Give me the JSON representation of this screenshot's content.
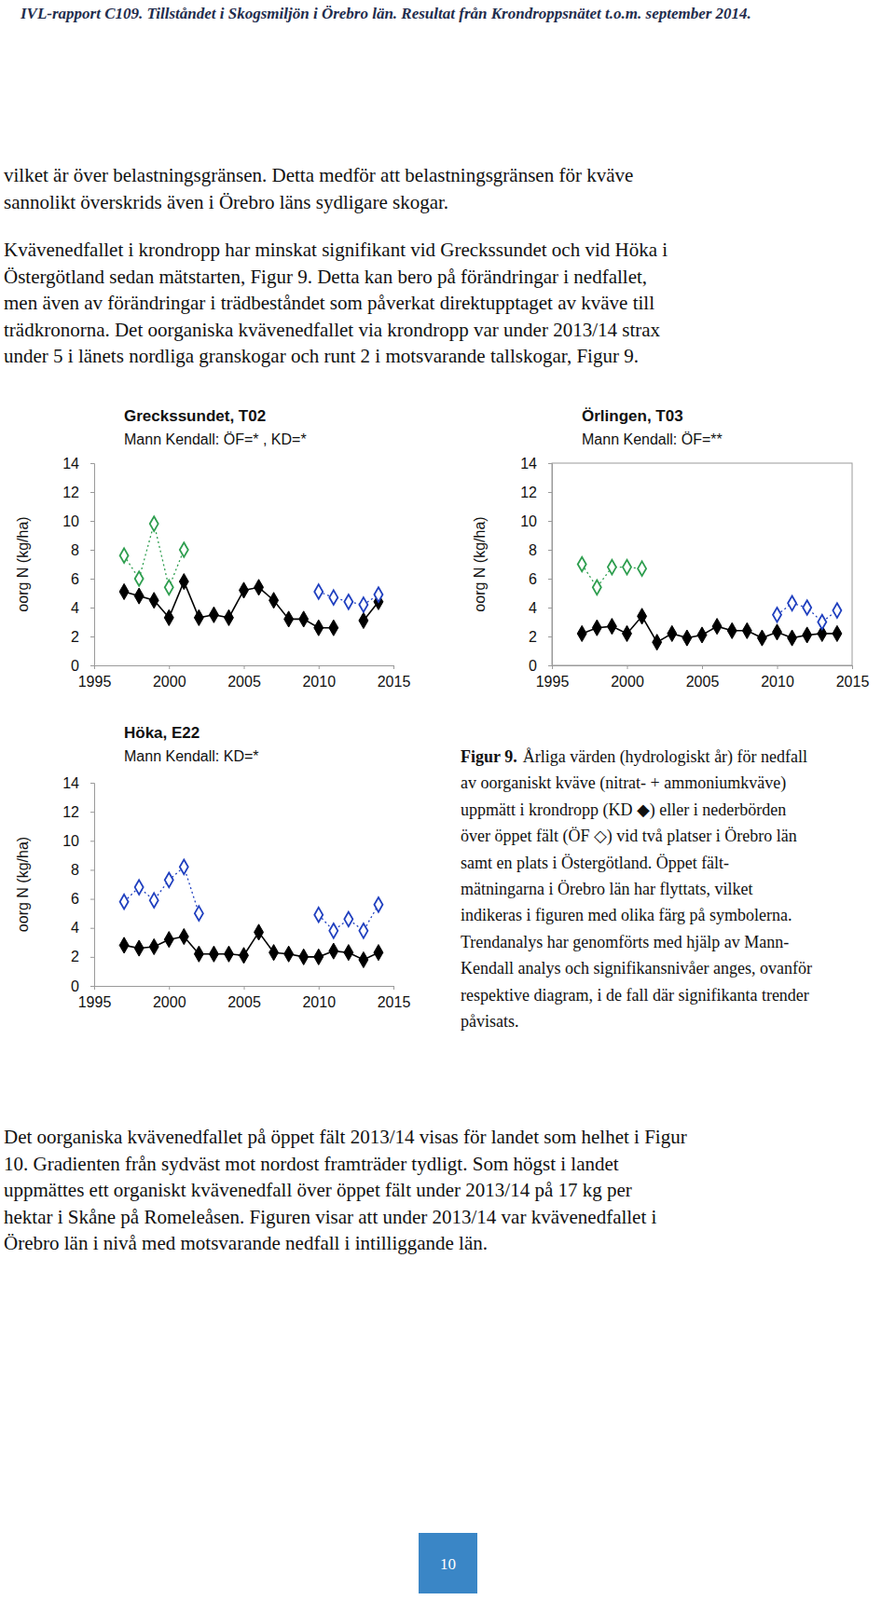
{
  "header": "IVL-rapport C109. Tillståndet i Skogsmiljön i Örebro län. Resultat från Krondroppsnätet t.o.m. september 2014.",
  "paragraphs_top": [
    [
      "vilket är över belastningsgränsen. Detta medför att belastningsgränsen för kväve",
      "sannolikt överskrids även i Örebro läns sydligare skogar."
    ],
    [
      "Kvävenedfallet i krondropp har minskat signifikant vid Greckssundet och vid Höka i",
      "Östergötland sedan mätstarten, Figur 9. Detta kan bero på förändringar i nedfallet,",
      "men även av förändringar i trädbeståndet som påverkat direktupptaget av kväve till",
      "trädkronorna. Det oorganiska kvävenedfallet via krondropp var under 2013/14 strax",
      "under 5 i länets nordliga granskogar och runt 2 i motsvarande tallskogar, Figur 9."
    ]
  ],
  "chart_data": [
    {
      "type": "line",
      "title": "Greckssundet, T02",
      "subtitle": "Mann Kendall: ÖF=* , KD=*",
      "y_label": "oorg N (kg/ha)",
      "x": [
        1997,
        1998,
        1999,
        2000,
        2001,
        2002,
        2003,
        2004,
        2005,
        2006,
        2007,
        2008,
        2009,
        2010,
        2011,
        2012,
        2013,
        2014
      ],
      "xlim": [
        1995,
        2015
      ],
      "xticks": [
        1995,
        2000,
        2005,
        2010,
        2015
      ],
      "ylim": [
        0,
        14
      ],
      "yticks": [
        0,
        2,
        4,
        6,
        8,
        10,
        12,
        14
      ],
      "series": [
        {
          "color": "#000000",
          "marker": "diamond",
          "line_style": "solid",
          "values": [
            5.1,
            4.8,
            4.5,
            3.3,
            5.8,
            3.3,
            3.5,
            3.3,
            5.2,
            5.4,
            4.5,
            3.2,
            3.2,
            2.6,
            2.6,
            null,
            3.1,
            4.4
          ]
        },
        {
          "colors": [
            "#2e9e4f",
            "#2e9e4f",
            "#2e9e4f",
            "#2e9e4f",
            "#2e9e4f",
            null,
            null,
            null,
            null,
            null,
            null,
            null,
            null,
            "#1f3fbf",
            "#1f3fbf",
            "#1f3fbf",
            "#1f3fbf",
            "#1f3fbf"
          ],
          "marker": "diamond-open",
          "line_style": "dotted",
          "values": [
            7.6,
            6.0,
            9.8,
            5.4,
            8.0,
            null,
            null,
            null,
            null,
            null,
            null,
            null,
            null,
            5.1,
            4.7,
            4.4,
            4.2,
            4.9
          ]
        }
      ]
    },
    {
      "type": "line",
      "title": "Örlingen, T03",
      "subtitle": "Mann Kendall: ÖF=**",
      "y_label": "oorg N (kg/ha)",
      "x": [
        1997,
        1998,
        1999,
        2000,
        2001,
        2002,
        2003,
        2004,
        2005,
        2006,
        2007,
        2008,
        2009,
        2010,
        2011,
        2012,
        2013,
        2014
      ],
      "xlim": [
        1995,
        2015
      ],
      "xticks": [
        1995,
        2000,
        2005,
        2010,
        2015
      ],
      "ylim": [
        0,
        14
      ],
      "yticks": [
        0,
        2,
        4,
        6,
        8,
        10,
        12,
        14
      ],
      "series": [
        {
          "color": "#000000",
          "marker": "diamond",
          "line_style": "solid",
          "values": [
            2.2,
            2.6,
            2.7,
            2.2,
            3.4,
            1.6,
            2.2,
            1.9,
            2.1,
            2.7,
            2.4,
            2.4,
            1.9,
            2.3,
            1.9,
            2.1,
            2.2,
            2.2
          ]
        },
        {
          "colors": [
            "#2e9e4f",
            "#2e9e4f",
            "#2e9e4f",
            "#2e9e4f",
            "#2e9e4f",
            null,
            null,
            null,
            null,
            null,
            null,
            null,
            null,
            "#1f3fbf",
            "#1f3fbf",
            "#1f3fbf",
            "#1f3fbf",
            "#1f3fbf"
          ],
          "marker": "diamond-open",
          "line_style": "dotted",
          "values": [
            7.0,
            5.4,
            6.8,
            6.8,
            6.7,
            null,
            null,
            null,
            null,
            null,
            null,
            null,
            null,
            3.5,
            4.3,
            4.0,
            3.0,
            3.8
          ]
        }
      ]
    },
    {
      "type": "line",
      "title": "Höka, E22",
      "subtitle": "Mann Kendall: KD=*",
      "y_label": "oorg N (kg/ha)",
      "x": [
        1997,
        1998,
        1999,
        2000,
        2001,
        2002,
        2003,
        2004,
        2005,
        2006,
        2007,
        2008,
        2009,
        2010,
        2011,
        2012,
        2013,
        2014
      ],
      "xlim": [
        1995,
        2015
      ],
      "xticks": [
        1995,
        2000,
        2005,
        2010,
        2015
      ],
      "ylim": [
        0,
        14
      ],
      "yticks": [
        0,
        2,
        4,
        6,
        8,
        10,
        12,
        14
      ],
      "series": [
        {
          "color": "#000000",
          "marker": "diamond",
          "line_style": "solid",
          "values": [
            2.8,
            2.6,
            2.7,
            3.2,
            3.4,
            2.2,
            2.2,
            2.2,
            2.1,
            3.7,
            2.3,
            2.2,
            2.0,
            2.0,
            2.4,
            2.3,
            1.8,
            2.3
          ]
        },
        {
          "colors": [
            "#1f3fbf",
            "#1f3fbf",
            "#1f3fbf",
            "#1f3fbf",
            "#1f3fbf",
            "#1f3fbf",
            null,
            null,
            null,
            null,
            null,
            null,
            null,
            "#1f3fbf",
            "#1f3fbf",
            "#1f3fbf",
            "#1f3fbf",
            "#1f3fbf"
          ],
          "marker": "diamond-open",
          "line_style": "dotted",
          "values": [
            5.8,
            6.8,
            5.9,
            7.3,
            8.2,
            5.0,
            null,
            null,
            null,
            null,
            null,
            null,
            null,
            4.9,
            3.8,
            4.6,
            3.8,
            5.6
          ]
        }
      ]
    }
  ],
  "caption": {
    "label": "Figur 9.",
    "lines": [
      "Årliga värden (hydrologiskt år) för nedfall",
      "av oorganiskt kväve (nitrat- + ammoniumkväve)",
      "uppmätt i krondropp (KD ◆) eller i nederbörden",
      "över öppet fält (ÖF ◇) vid två platser i Örebro län",
      "samt en plats i Östergötland. Öppet fält-",
      "mätningarna i Örebro län har flyttats, vilket",
      "indikeras i figuren med olika färg på symbolerna.",
      "Trendanalys har genomförts med hjälp av Mann-",
      "Kendall analys och signifikansnivåer anges, ovanför",
      "respektive diagram, i de fall där signifikanta trender",
      "påvisats."
    ]
  },
  "paragraphs_bottom": [
    [
      "Det oorganiska kvävenedfallet på öppet fält 2013/14 visas för landet som helhet i Figur",
      "10. Gradienten från sydväst mot nordost framträder tydligt. Som högst i landet",
      "uppmättes ett organiskt kvävenedfall över öppet fält under 2013/14 på 17 kg per",
      "hektar i Skåne på Romeleåsen. Figuren visar att under 2013/14 var kvävenedfallet i",
      "Örebro län i nivå med motsvarande nedfall i intilliggande län."
    ]
  ],
  "page_number": "10"
}
